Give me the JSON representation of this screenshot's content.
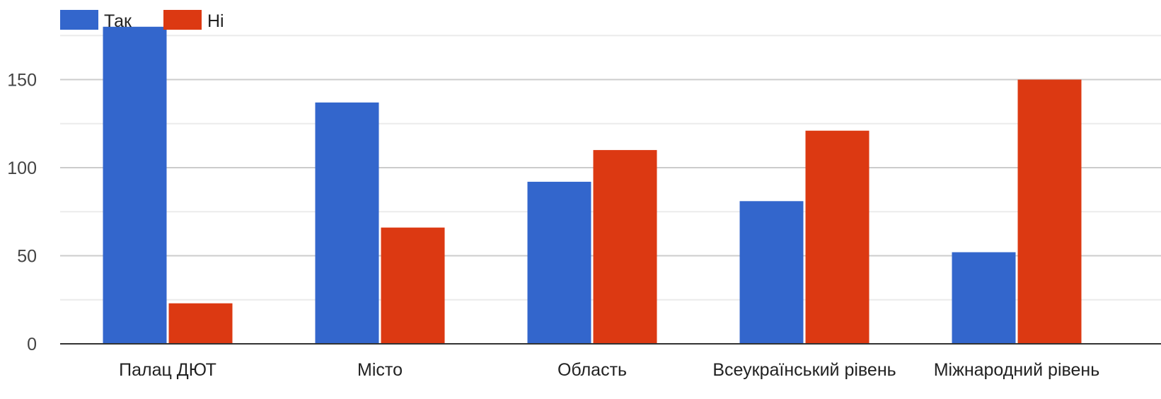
{
  "chart_data": {
    "type": "bar",
    "categories": [
      "Палац ДЮТ",
      "Місто",
      "Область",
      "Всеукраїнський рівень",
      "Міжнародний рівень"
    ],
    "series": [
      {
        "name": "Так",
        "color": "#3366cc",
        "values": [
          180,
          137,
          92,
          81,
          52
        ]
      },
      {
        "name": "Ні",
        "color": "#dc3912",
        "values": [
          23,
          66,
          110,
          121,
          150
        ]
      }
    ],
    "ylim": [
      0,
      180
    ],
    "yticks": [
      0,
      50,
      100,
      150
    ],
    "grid": true,
    "legend_position": "top-left",
    "title": "",
    "xlabel": "",
    "ylabel": ""
  }
}
